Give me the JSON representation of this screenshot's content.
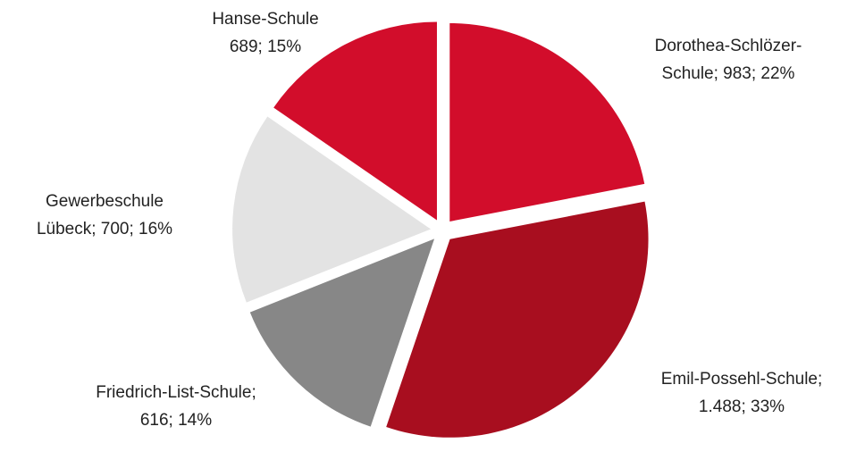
{
  "chart_data": {
    "type": "pie",
    "values": [
      983,
      1488,
      616,
      700,
      689
    ],
    "value_labels": [
      [
        "Dorothea-Schlözer-",
        "Schule; 983; 22%"
      ],
      [
        "Emil-Possehl-Schule;",
        "1.488; 33%"
      ],
      [
        "Friedrich-List-Schule;",
        "616; 14%"
      ],
      [
        "Gewerbeschule",
        "Lübeck; 700; 16%"
      ],
      [
        "Hanse-Schule",
        "689; 15%"
      ]
    ],
    "colors": [
      "#d20d2b",
      "#a80e1f",
      "#878787",
      "#e3e3e3",
      "#d20d2b"
    ]
  }
}
